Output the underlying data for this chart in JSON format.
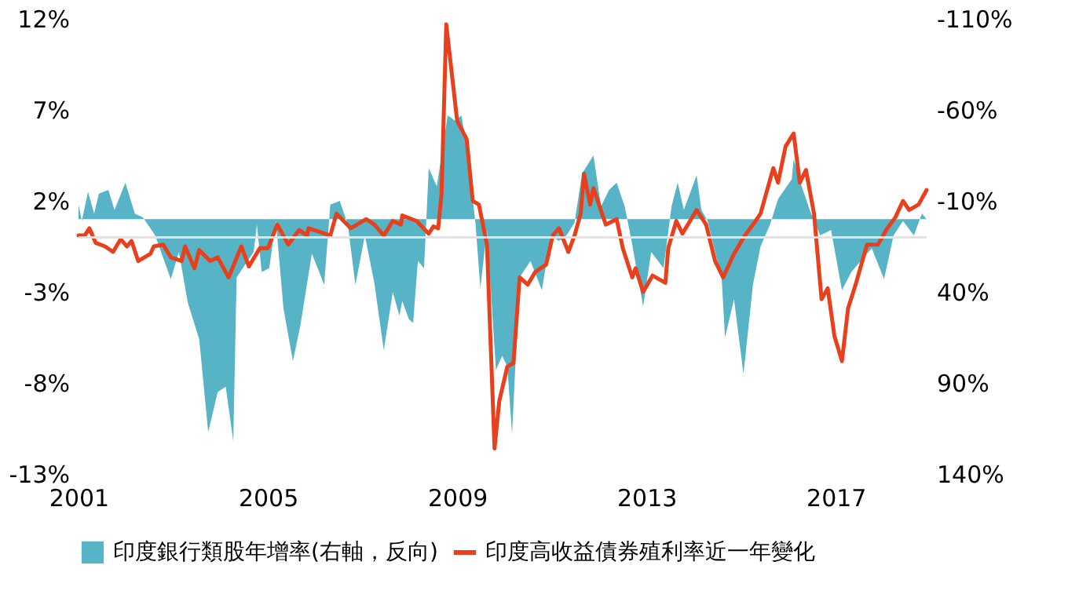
{
  "chart_data": {
    "type": "line",
    "xlim": [
      2001,
      2018.92
    ],
    "xticks": [
      2001,
      2005,
      2009,
      2013,
      2017
    ],
    "ylim": [
      -13,
      12
    ],
    "yticks": [
      {
        "value": -13,
        "label": "-13%"
      },
      {
        "value": -8,
        "label": "-8%"
      },
      {
        "value": -3,
        "label": "-3%"
      },
      {
        "value": 2,
        "label": "2%"
      },
      {
        "value": 7,
        "label": "7%"
      },
      {
        "value": 12,
        "label": "12%"
      }
    ],
    "y2lim": [
      140,
      -110
    ],
    "y2ticks": [
      {
        "value": 140,
        "label": "140%"
      },
      {
        "value": 90,
        "label": "90%"
      },
      {
        "value": 40,
        "label": "40%"
      },
      {
        "value": -10,
        "label": "-10%"
      },
      {
        "value": -60,
        "label": "-60%"
      },
      {
        "value": -110,
        "label": "-110%"
      }
    ],
    "ref_lines": [
      {
        "axis": "y",
        "value": 0,
        "color": "#e3e3e3"
      }
    ],
    "legend": "bottom",
    "grid": false,
    "marker": "none",
    "series": [
      {
        "name": "印度銀行類股年增率(右軸，反向)",
        "type": "area",
        "axis": "y2",
        "color": "#56b4c6",
        "x": [
          2001.0,
          2001.07,
          2001.2,
          2001.33,
          2001.43,
          2001.63,
          2001.76,
          2001.99,
          2002.19,
          2002.36,
          2002.62,
          2002.95,
          2003.12,
          2003.31,
          2003.55,
          2003.74,
          2003.94,
          2004.11,
          2004.27,
          2004.34,
          2004.7,
          2004.77,
          2004.87,
          2005.03,
          2005.17,
          2005.33,
          2005.53,
          2005.69,
          2005.93,
          2006.19,
          2006.32,
          2006.52,
          2006.69,
          2006.85,
          2007.05,
          2007.25,
          2007.45,
          2007.64,
          2007.78,
          2007.84,
          2007.98,
          2008.07,
          2008.17,
          2008.3,
          2008.4,
          2008.57,
          2008.8,
          2008.96,
          2009.09,
          2009.22,
          2009.39,
          2009.49,
          2009.63,
          2009.82,
          2009.95,
          2010.06,
          2010.16,
          2010.32,
          2010.55,
          2010.79,
          2010.98,
          2011.15,
          2011.31,
          2011.48,
          2011.64,
          2011.88,
          2012.04,
          2012.21,
          2012.37,
          2012.54,
          2012.7,
          2012.93,
          2013.1,
          2013.36,
          2013.53,
          2013.66,
          2013.79,
          2013.93,
          2014.06,
          2014.16,
          2014.29,
          2014.59,
          2014.66,
          2014.85,
          2015.05,
          2015.25,
          2015.41,
          2015.61,
          2015.78,
          2016.07,
          2016.11,
          2016.28,
          2016.45,
          2016.67,
          2016.9,
          2017.13,
          2017.33,
          2017.56,
          2017.76,
          2018.02,
          2018.22,
          2018.42,
          2018.65,
          2018.82,
          2018.92
        ],
        "values": [
          -8,
          1,
          -15,
          -3,
          -14,
          -16,
          -5,
          -20,
          -3,
          -1,
          9,
          33,
          18,
          46,
          66,
          117,
          95,
          92,
          122,
          32,
          18,
          3,
          29,
          27,
          1,
          49,
          78,
          58,
          19,
          36,
          -8,
          -10,
          3,
          36,
          9,
          35,
          72,
          40,
          53,
          45,
          55,
          57,
          23,
          27,
          -28,
          -18,
          -57,
          -54,
          -57,
          -37,
          3,
          38,
          6,
          83,
          75,
          81,
          118,
          32,
          23,
          39,
          9,
          12,
          9,
          2,
          -25,
          -35,
          -7,
          -16,
          -20,
          -7,
          14,
          48,
          18,
          27,
          -7,
          -20,
          -5,
          -15,
          -24,
          -5,
          1,
          33,
          65,
          44,
          85,
          36,
          15,
          3,
          -11,
          -22,
          -33,
          -18,
          -5,
          9,
          6,
          39,
          29,
          22,
          16,
          33,
          9,
          1,
          9,
          -3,
          0
        ]
      },
      {
        "name": "印度高收益債券殖利率近一年變化",
        "color": "#e8401c",
        "line_style": "solid",
        "x": [
          2001.0,
          2001.13,
          2001.23,
          2001.36,
          2001.56,
          2001.73,
          2001.89,
          2002.02,
          2002.12,
          2002.26,
          2002.52,
          2002.59,
          2002.79,
          2002.95,
          2003.18,
          2003.25,
          2003.45,
          2003.55,
          2003.78,
          2003.94,
          2004.17,
          2004.44,
          2004.6,
          2004.83,
          2005.0,
          2005.2,
          2005.43,
          2005.66,
          2005.83,
          2005.86,
          2006.09,
          2006.32,
          2006.45,
          2006.75,
          2007.08,
          2007.25,
          2007.45,
          2007.64,
          2007.81,
          2007.84,
          2008.14,
          2008.4,
          2008.5,
          2008.6,
          2008.67,
          2008.77,
          2008.9,
          2009.0,
          2009.2,
          2009.33,
          2009.46,
          2009.63,
          2009.79,
          2009.89,
          2010.06,
          2010.19,
          2010.32,
          2010.49,
          2010.65,
          2010.88,
          2011.02,
          2011.15,
          2011.35,
          2011.48,
          2011.61,
          2011.68,
          2011.81,
          2011.88,
          2012.14,
          2012.37,
          2012.5,
          2012.7,
          2012.77,
          2012.93,
          2013.13,
          2013.4,
          2013.46,
          2013.63,
          2013.76,
          2014.06,
          2014.26,
          2014.45,
          2014.62,
          2014.85,
          2015.08,
          2015.28,
          2015.41,
          2015.68,
          2015.78,
          2015.94,
          2016.11,
          2016.24,
          2016.37,
          2016.54,
          2016.7,
          2016.83,
          2016.97,
          2017.13,
          2017.26,
          2017.43,
          2017.66,
          2017.89,
          2018.09,
          2018.26,
          2018.42,
          2018.55,
          2018.75,
          2018.92
        ],
        "values": [
          0.1,
          0.1,
          0.5,
          -0.3,
          -0.5,
          -0.8,
          -0.1,
          -0.5,
          -0.2,
          -1.3,
          -0.9,
          -0.5,
          -0.4,
          -1.1,
          -1.3,
          -0.5,
          -1.7,
          -0.7,
          -1.3,
          -1.1,
          -2.2,
          -0.5,
          -1.6,
          -0.6,
          -0.6,
          0.7,
          -0.4,
          0.4,
          0.1,
          0.5,
          0.3,
          0.1,
          1.3,
          0.5,
          1.0,
          0.7,
          0.1,
          0.9,
          0.7,
          1.2,
          0.9,
          0.2,
          0.6,
          0.5,
          2.4,
          11.7,
          8.7,
          6.4,
          5.4,
          2.0,
          1.8,
          -0.4,
          -11.6,
          -9.0,
          -7.1,
          -6.9,
          -2.2,
          -2.6,
          -1.9,
          -1.5,
          0.1,
          0.5,
          -0.8,
          0.1,
          1.3,
          3.5,
          1.8,
          2.7,
          0.7,
          1.0,
          -0.6,
          -2.2,
          -1.7,
          -3.0,
          -2.1,
          -2.5,
          -0.6,
          0.9,
          0.2,
          1.5,
          0.7,
          -1.3,
          -2.2,
          -0.9,
          0.1,
          0.8,
          1.3,
          3.8,
          3.0,
          5.0,
          5.7,
          3.0,
          3.7,
          1.3,
          -3.4,
          -2.8,
          -5.4,
          -6.8,
          -3.9,
          -2.5,
          -0.4,
          -0.4,
          0.5,
          1.1,
          2.0,
          1.5,
          1.8,
          2.6
        ]
      }
    ]
  }
}
